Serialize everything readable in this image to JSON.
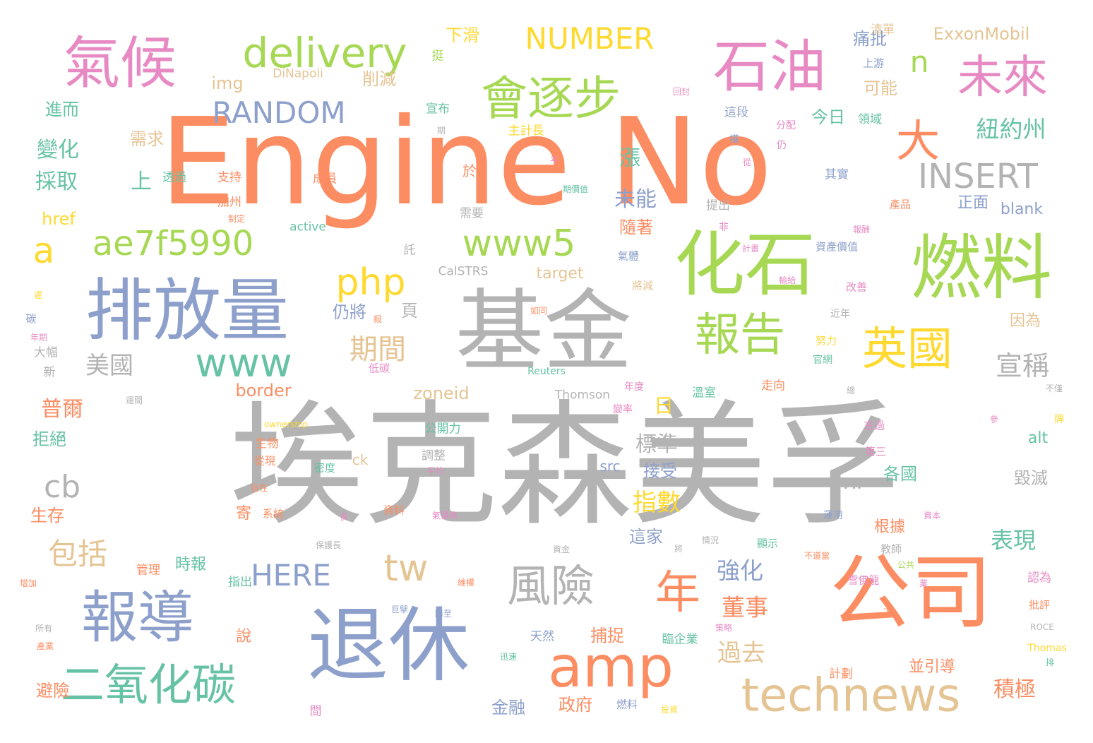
{
  "palette": {
    "gray": "#b3b3b3",
    "orange": "#fc8d62",
    "blue": "#8da0cb",
    "pink": "#e78ac3",
    "green": "#a6d854",
    "yellow": "#ffd92f",
    "tan": "#e5c494",
    "teal": "#66c2a5"
  },
  "words": [
    {
      "text": "埃克森美孚",
      "weight": 100,
      "color": "gray"
    },
    {
      "text": "Engine No",
      "weight": 86,
      "color": "orange"
    },
    {
      "text": "基金",
      "weight": 66,
      "color": "gray"
    },
    {
      "text": "公司",
      "weight": 56,
      "color": "orange"
    },
    {
      "text": "退休",
      "weight": 56,
      "color": "blue"
    },
    {
      "text": "燃料",
      "weight": 50,
      "color": "green"
    },
    {
      "text": "化石",
      "weight": 50,
      "color": "green"
    },
    {
      "text": "排放量",
      "weight": 47,
      "color": "blue"
    },
    {
      "text": "石油",
      "weight": 40,
      "color": "pink"
    },
    {
      "text": "氣候",
      "weight": 40,
      "color": "pink"
    },
    {
      "text": "報導",
      "weight": 42,
      "color": "blue"
    },
    {
      "text": "amp",
      "weight": 42,
      "color": "orange"
    },
    {
      "text": "technews",
      "weight": 34,
      "color": "tan"
    },
    {
      "text": "會逐步",
      "weight": 34,
      "color": "green"
    },
    {
      "text": "未來",
      "weight": 33,
      "color": "pink"
    },
    {
      "text": "年",
      "weight": 33,
      "color": "orange"
    },
    {
      "text": "英國",
      "weight": 33,
      "color": "yellow"
    },
    {
      "text": "報告",
      "weight": 33,
      "color": "green"
    },
    {
      "text": "二氧化碳",
      "weight": 31,
      "color": "teal"
    },
    {
      "text": "風險",
      "weight": 31,
      "color": "gray"
    },
    {
      "text": "大",
      "weight": 31,
      "color": "orange"
    },
    {
      "text": "delivery",
      "weight": 30,
      "color": "green"
    },
    {
      "text": "www",
      "weight": 28,
      "color": "teal"
    },
    {
      "text": "www5",
      "weight": 27,
      "color": "green"
    },
    {
      "text": "php",
      "weight": 27,
      "color": "yellow"
    },
    {
      "text": "ae7f5990",
      "weight": 25,
      "color": "green"
    },
    {
      "text": "tw",
      "weight": 27,
      "color": "tan"
    },
    {
      "text": "INSERT",
      "weight": 23,
      "color": "gray"
    },
    {
      "text": "NUMBER",
      "weight": 22,
      "color": "yellow"
    },
    {
      "text": "RANDOM",
      "weight": 22,
      "color": "blue"
    },
    {
      "text": "HERE",
      "weight": 22,
      "color": "blue"
    },
    {
      "text": "逐步",
      "weight": 1,
      "color": "yellow"
    },
    {
      "text": "包括",
      "weight": 22,
      "color": "tan"
    },
    {
      "text": "期間",
      "weight": 20,
      "color": "tan"
    },
    {
      "text": "宣稱",
      "weight": 19,
      "color": "gray"
    },
    {
      "text": "n",
      "weight": 22,
      "color": "green"
    },
    {
      "text": "a",
      "weight": 25,
      "color": "yellow"
    },
    {
      "text": "cb",
      "weight": 22,
      "color": "gray"
    },
    {
      "text": "美國",
      "weight": 18,
      "color": "gray"
    },
    {
      "text": "指數",
      "weight": 18,
      "color": "yellow"
    },
    {
      "text": "過去",
      "weight": 18,
      "color": "tan"
    },
    {
      "text": "紐約州",
      "weight": 17,
      "color": "teal"
    },
    {
      "text": "強化",
      "weight": 17,
      "color": "blue"
    },
    {
      "text": "董事",
      "weight": 17,
      "color": "orange"
    },
    {
      "text": "表現",
      "weight": 17,
      "color": "teal"
    },
    {
      "text": "積極",
      "weight": 16,
      "color": "orange"
    },
    {
      "text": "標準",
      "weight": 16,
      "color": "gray"
    },
    {
      "text": "普爾",
      "weight": 15,
      "color": "orange"
    },
    {
      "text": "變化",
      "weight": 15,
      "color": "teal"
    },
    {
      "text": "採取",
      "weight": 15,
      "color": "teal"
    },
    {
      "text": "漲",
      "weight": 15,
      "color": "teal"
    },
    {
      "text": "上",
      "weight": 15,
      "color": "teal"
    },
    {
      "text": "未能",
      "weight": 15,
      "color": "blue"
    },
    {
      "text": "日",
      "weight": 14,
      "color": "yellow"
    },
    {
      "text": "ExxonMobil",
      "weight": 12,
      "color": "tan"
    },
    {
      "text": "下滑",
      "weight": 12,
      "color": "yellow"
    },
    {
      "text": "痛批",
      "weight": 12,
      "color": "blue"
    },
    {
      "text": "削減",
      "weight": 12,
      "color": "tan"
    },
    {
      "text": "img",
      "weight": 12,
      "color": "tan"
    },
    {
      "text": "DiNapoli",
      "weight": 9,
      "color": "tan"
    },
    {
      "text": "進而",
      "weight": 12,
      "color": "teal"
    },
    {
      "text": "可能",
      "weight": 12,
      "color": "tan"
    },
    {
      "text": "清單",
      "weight": 9,
      "color": "tan"
    },
    {
      "text": "上游",
      "weight": 8,
      "color": "blue"
    },
    {
      "text": "挺",
      "weight": 9,
      "color": "green"
    },
    {
      "text": "宣布",
      "weight": 9,
      "color": "teal"
    },
    {
      "text": "需求",
      "weight": 12,
      "color": "tan"
    },
    {
      "text": "主計長",
      "weight": 9,
      "color": "yellow"
    },
    {
      "text": "今日",
      "weight": 12,
      "color": "teal"
    },
    {
      "text": "領域",
      "weight": 9,
      "color": "teal"
    },
    {
      "text": "這段",
      "weight": 9,
      "color": "blue"
    },
    {
      "text": "分配",
      "weight": 7,
      "color": "pink"
    },
    {
      "text": "仍",
      "weight": 7,
      "color": "pink"
    },
    {
      "text": "權",
      "weight": 7,
      "color": "blue"
    },
    {
      "text": "期",
      "weight": 6,
      "color": "gray"
    },
    {
      "text": "回封",
      "weight": 6,
      "color": "pink"
    },
    {
      "text": "支持",
      "weight": 9,
      "color": "orange"
    },
    {
      "text": "透過",
      "weight": 9,
      "color": "teal"
    },
    {
      "text": "成員",
      "weight": 9,
      "color": "orange"
    },
    {
      "text": "加州",
      "weight": 9,
      "color": "orange"
    },
    {
      "text": "於",
      "weight": 10,
      "color": "orange"
    },
    {
      "text": "其實",
      "weight": 9,
      "color": "blue"
    },
    {
      "text": "平",
      "weight": 6,
      "color": "pink"
    },
    {
      "text": "期價值",
      "weight": 6,
      "color": "teal"
    },
    {
      "text": "從",
      "weight": 6,
      "color": "pink"
    },
    {
      "text": "href",
      "weight": 12,
      "color": "yellow"
    },
    {
      "text": "制定",
      "weight": 6,
      "color": "orange"
    },
    {
      "text": "active",
      "weight": 9,
      "color": "teal"
    },
    {
      "text": "需要",
      "weight": 9,
      "color": "gray"
    },
    {
      "text": "提出",
      "weight": 9,
      "color": "gray"
    },
    {
      "text": "非",
      "weight": 7,
      "color": "pink"
    },
    {
      "text": "產品",
      "weight": 8,
      "color": "orange"
    },
    {
      "text": "正面",
      "weight": 11,
      "color": "blue"
    },
    {
      "text": "blank",
      "weight": 11,
      "color": "blue"
    },
    {
      "text": "報酬",
      "weight": 6,
      "color": "pink"
    },
    {
      "text": "隨著",
      "weight": 12,
      "color": "orange"
    },
    {
      "text": "計畫",
      "weight": 6,
      "color": "pink"
    },
    {
      "text": "資產價值",
      "weight": 8,
      "color": "blue"
    },
    {
      "text": "託",
      "weight": 9,
      "color": "gray"
    },
    {
      "text": "氣體",
      "weight": 8,
      "color": "blue"
    },
    {
      "text": "CalSTRS",
      "weight": 9,
      "color": "gray"
    },
    {
      "text": "target",
      "weight": 11,
      "color": "tan"
    },
    {
      "text": "輸給",
      "weight": 6,
      "color": "pink"
    },
    {
      "text": "將減",
      "weight": 8,
      "color": "tan"
    },
    {
      "text": "改善",
      "weight": 8,
      "color": "pink"
    },
    {
      "text": "遲",
      "weight": 6,
      "color": "yellow"
    },
    {
      "text": "仍將",
      "weight": 12,
      "color": "blue"
    },
    {
      "text": "頁",
      "weight": 12,
      "color": "gray"
    },
    {
      "text": "殺",
      "weight": 6,
      "color": "orange"
    },
    {
      "text": "如同",
      "weight": 6,
      "color": "orange"
    },
    {
      "text": "碳",
      "weight": 7,
      "color": "blue"
    },
    {
      "text": "年期",
      "weight": 6,
      "color": "pink"
    },
    {
      "text": "近年",
      "weight": 7,
      "color": "gray"
    },
    {
      "text": "因為",
      "weight": 11,
      "color": "tan"
    },
    {
      "text": "大幅",
      "weight": 9,
      "color": "gray"
    },
    {
      "text": "努力",
      "weight": 8,
      "color": "yellow"
    },
    {
      "text": "新",
      "weight": 8,
      "color": "gray"
    },
    {
      "text": "官網",
      "weight": 7,
      "color": "teal"
    },
    {
      "text": "低碳",
      "weight": 8,
      "color": "pink"
    },
    {
      "text": "border",
      "weight": 12,
      "color": "orange"
    },
    {
      "text": "zoneid",
      "weight": 12,
      "color": "tan"
    },
    {
      "text": "Thomson",
      "weight": 9,
      "color": "gray"
    },
    {
      "text": "年度",
      "weight": 7,
      "color": "pink"
    },
    {
      "text": "溫室",
      "weight": 9,
      "color": "teal"
    },
    {
      "text": "走向",
      "weight": 9,
      "color": "orange"
    },
    {
      "text": "總",
      "weight": 6,
      "color": "gray"
    },
    {
      "text": "不僅",
      "weight": 6,
      "color": "gray"
    },
    {
      "text": "運間",
      "weight": 5,
      "color": "gray"
    },
    {
      "text": "ownership",
      "weight": 6,
      "color": "yellow"
    },
    {
      "text": "變率",
      "weight": 6,
      "color": "pink"
    },
    {
      "text": "參",
      "weight": 6,
      "color": "pink"
    },
    {
      "text": "牌",
      "weight": 6,
      "color": "yellow"
    },
    {
      "text": "拒絕",
      "weight": 12,
      "color": "teal"
    },
    {
      "text": "生物",
      "weight": 9,
      "color": "orange"
    },
    {
      "text": "公開力",
      "weight": 9,
      "color": "teal"
    },
    {
      "text": "言過",
      "weight": 8,
      "color": "pink"
    },
    {
      "text": "第三",
      "weight": 8,
      "color": "pink"
    },
    {
      "text": "alt",
      "weight": 11,
      "color": "teal"
    },
    {
      "text": "調整",
      "weight": 9,
      "color": "gray"
    },
    {
      "text": "ck",
      "weight": 10,
      "color": "tan"
    },
    {
      "text": "src",
      "weight": 10,
      "color": "blue"
    },
    {
      "text": "接受",
      "weight": 12,
      "color": "blue"
    },
    {
      "text": "從現",
      "weight": 8,
      "color": "orange"
    },
    {
      "text": "密度",
      "weight": 8,
      "color": "teal"
    },
    {
      "text": "平均",
      "weight": 6,
      "color": "pink"
    },
    {
      "text": "旨在",
      "weight": 6,
      "color": "orange"
    },
    {
      "text": "各國",
      "weight": 11,
      "color": "teal"
    },
    {
      "text": "avw",
      "weight": 11,
      "color": "gray"
    },
    {
      "text": "毀滅",
      "weight": 12,
      "color": "gray"
    },
    {
      "text": "生存",
      "weight": 12,
      "color": "orange"
    },
    {
      "text": "寄",
      "weight": 11,
      "color": "orange"
    },
    {
      "text": "系統",
      "weight": 8,
      "color": "orange"
    },
    {
      "text": "資料",
      "weight": 8,
      "color": "orange"
    },
    {
      "text": "氣價格",
      "weight": 6,
      "color": "pink"
    },
    {
      "text": "這家",
      "weight": 12,
      "color": "blue"
    },
    {
      "text": "根據",
      "weight": 11,
      "color": "orange"
    },
    {
      "text": "運用",
      "weight": 6,
      "color": "blue"
    },
    {
      "text": "資本",
      "weight": 6,
      "color": "pink"
    },
    {
      "text": "長",
      "weight": 6,
      "color": "pink"
    },
    {
      "text": "情況",
      "weight": 6,
      "color": "gray"
    },
    {
      "text": "顯示",
      "weight": 8,
      "color": "teal"
    },
    {
      "text": "時報",
      "weight": 11,
      "color": "teal"
    },
    {
      "text": "保護長",
      "weight": 6,
      "color": "gray"
    },
    {
      "text": "將",
      "weight": 7,
      "color": "gray"
    },
    {
      "text": "不道當",
      "weight": 6,
      "color": "orange"
    },
    {
      "text": "教師",
      "weight": 8,
      "color": "gray"
    },
    {
      "text": "管理",
      "weight": 9,
      "color": "orange"
    },
    {
      "text": "資金",
      "weight": 5,
      "color": "gray"
    },
    {
      "text": "公共",
      "weight": 8,
      "color": "green"
    },
    {
      "text": "業",
      "weight": 5,
      "color": "pink"
    },
    {
      "text": "認為",
      "weight": 6,
      "color": "pink"
    },
    {
      "text": "增加",
      "weight": 9,
      "color": "orange"
    },
    {
      "text": "指出",
      "weight": 6,
      "color": "teal"
    },
    {
      "text": "維權",
      "weight": 9,
      "color": "orange"
    },
    {
      "text": "雪佛龍",
      "weight": 6,
      "color": "pink"
    },
    {
      "text": "批評",
      "weight": 8,
      "color": "orange"
    },
    {
      "text": "所有",
      "weight": 8,
      "color": "gray"
    },
    {
      "text": "說",
      "weight": 6,
      "color": "orange"
    },
    {
      "text": "巨擘",
      "weight": 11,
      "color": "blue"
    },
    {
      "text": "降至",
      "weight": 6,
      "color": "blue"
    },
    {
      "text": "下",
      "weight": 6,
      "color": "orange"
    },
    {
      "text": "策略",
      "weight": 6,
      "color": "pink"
    },
    {
      "text": "ROCE",
      "weight": 6,
      "color": "gray"
    },
    {
      "text": "產業",
      "weight": 6,
      "color": "orange"
    },
    {
      "text": "天然",
      "weight": 6,
      "color": "blue"
    },
    {
      "text": "捕捉",
      "weight": 9,
      "color": "orange"
    },
    {
      "text": "臨企業",
      "weight": 12,
      "color": "teal"
    },
    {
      "text": "Thomas",
      "weight": 9,
      "color": "yellow"
    },
    {
      "text": "排",
      "weight": 7,
      "color": "teal"
    },
    {
      "text": "迅速",
      "weight": 6,
      "color": "teal"
    },
    {
      "text": "計劃",
      "weight": 6,
      "color": "orange"
    },
    {
      "text": "並引導",
      "weight": 8,
      "color": "orange"
    },
    {
      "text": "避險",
      "weight": 11,
      "color": "orange"
    },
    {
      "text": "金融",
      "weight": 11,
      "color": "blue"
    },
    {
      "text": "政府",
      "weight": 11,
      "color": "orange"
    },
    {
      "text": "燃料 ",
      "weight": 12,
      "color": "blue"
    },
    {
      "text": "投資",
      "weight": 8,
      "color": "yellow"
    },
    {
      "text": "間",
      "weight": 6,
      "color": "pink"
    },
    {
      "text": "Reuters",
      "weight": 9,
      "color": "teal"
    }
  ]
}
